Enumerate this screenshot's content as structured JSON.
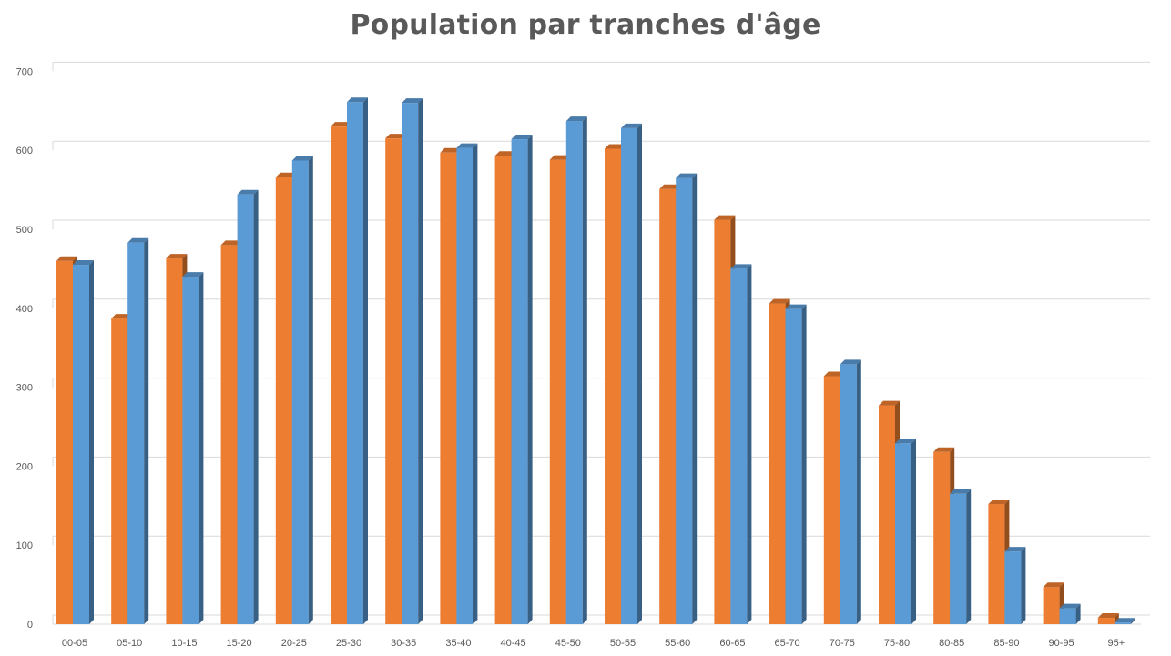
{
  "chart_data": {
    "type": "bar",
    "title": "Population par tranches d'âge",
    "xlabel": "",
    "ylabel": "",
    "categories": [
      "00-05",
      "05-10",
      "10-15",
      "15-20",
      "20-25",
      "25-30",
      "30-35",
      "35-40",
      "40-45",
      "45-50",
      "50-55",
      "55-60",
      "60-65",
      "65-70",
      "70-75",
      "75-80",
      "80-85",
      "85-90",
      "90-95",
      "95+"
    ],
    "series": [
      {
        "color": "#ED7D31",
        "values": [
          460,
          387,
          463,
          480,
          566,
          630,
          615,
          597,
          593,
          588,
          602,
          551,
          512,
          406,
          314,
          277,
          218,
          152,
          47,
          8
        ]
      },
      {
        "color": "#5B9BD5",
        "values": [
          455,
          483,
          440,
          544,
          587,
          661,
          660,
          603,
          614,
          637,
          628,
          565,
          450,
          399,
          329,
          229,
          165,
          92,
          20,
          2
        ]
      }
    ],
    "ylim": [
      0,
      700
    ],
    "yticks": [
      0,
      100,
      200,
      300,
      400,
      500,
      600,
      700
    ],
    "grid": true,
    "legend": "none",
    "style": "3d-column"
  }
}
